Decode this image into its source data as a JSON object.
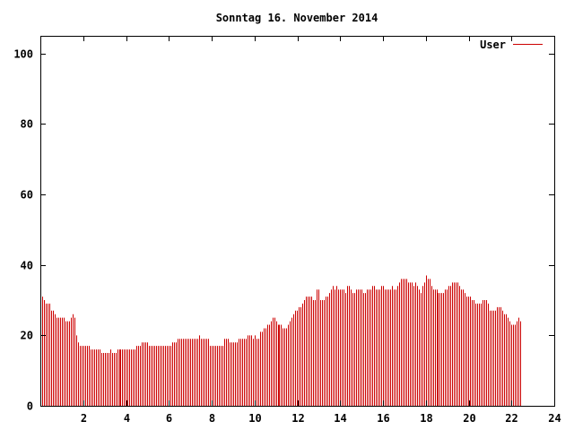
{
  "chart_data": {
    "type": "bar",
    "title": "Sonntag 16. November 2014",
    "xlabel": "",
    "ylabel": "",
    "xlim": [
      0,
      24
    ],
    "ylim": [
      0,
      105
    ],
    "xticks": [
      2,
      4,
      6,
      8,
      10,
      12,
      14,
      16,
      18,
      20,
      22,
      24
    ],
    "yticks": [
      0,
      20,
      40,
      60,
      80,
      100
    ],
    "grid": false,
    "legend": "top-right",
    "series": [
      {
        "name": "User",
        "color": "#cc0000",
        "x_start": 0,
        "x_step": 0.0833,
        "values": [
          30,
          31,
          30,
          29,
          29,
          29,
          27,
          27,
          26,
          25,
          25,
          25,
          25,
          25,
          24,
          24,
          24,
          25,
          26,
          25,
          20,
          18,
          17,
          17,
          17,
          17,
          17,
          17,
          16,
          16,
          16,
          16,
          16,
          16,
          15,
          15,
          15,
          15,
          15,
          16,
          15,
          15,
          15,
          16,
          16,
          16,
          16,
          16,
          16,
          16,
          16,
          16,
          16,
          16,
          17,
          17,
          17,
          18,
          18,
          18,
          18,
          17,
          17,
          17,
          17,
          17,
          17,
          17,
          17,
          17,
          17,
          17,
          17,
          17,
          18,
          18,
          18,
          19,
          19,
          19,
          19,
          19,
          19,
          19,
          19,
          19,
          19,
          19,
          19,
          20,
          19,
          19,
          19,
          19,
          19,
          17,
          17,
          17,
          17,
          17,
          17,
          17,
          17,
          19,
          19,
          19,
          18,
          18,
          18,
          18,
          18,
          19,
          19,
          19,
          19,
          19,
          20,
          20,
          20,
          19,
          20,
          19,
          19,
          21,
          21,
          22,
          22,
          23,
          23,
          24,
          25,
          25,
          24,
          23,
          23,
          23,
          22,
          22,
          22,
          23,
          24,
          25,
          26,
          27,
          27,
          28,
          28,
          29,
          30,
          31,
          31,
          31,
          31,
          30,
          30,
          33,
          33,
          30,
          30,
          30,
          31,
          31,
          32,
          33,
          34,
          33,
          34,
          33,
          33,
          33,
          33,
          32,
          34,
          34,
          33,
          32,
          32,
          33,
          33,
          33,
          33,
          32,
          32,
          33,
          33,
          33,
          34,
          34,
          33,
          33,
          33,
          34,
          34,
          33,
          33,
          33,
          33,
          34,
          33,
          33,
          34,
          35,
          36,
          36,
          36,
          36,
          35,
          35,
          35,
          34,
          35,
          34,
          33,
          32,
          34,
          35,
          37,
          36,
          36,
          34,
          33,
          33,
          33,
          32,
          32,
          32,
          32,
          33,
          33,
          34,
          34,
          35,
          35,
          35,
          35,
          34,
          33,
          33,
          32,
          31,
          31,
          31,
          30,
          30,
          29,
          29,
          29,
          29,
          30,
          30,
          30,
          29,
          27,
          27,
          27,
          27,
          28,
          28,
          28,
          27,
          26,
          26,
          25,
          24,
          23,
          23,
          23,
          24,
          25,
          24
        ]
      }
    ],
    "background": "#ffffff",
    "axis_color": "#000000"
  }
}
